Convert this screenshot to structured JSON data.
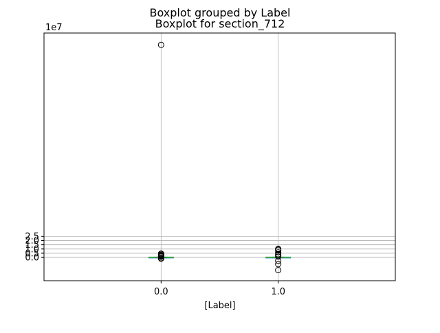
{
  "chart_data": {
    "type": "boxplot",
    "suptitle": "Boxplot grouped by Label",
    "title": "Boxplot for section_712",
    "xlabel": "[Label]",
    "ylabel": "",
    "y_scale_note": "1e7",
    "y_unit_multiplier": 10000000,
    "ylim": [
      -2.75,
      26.5
    ],
    "y_ticks": [
      0.0,
      0.5,
      1.0,
      1.5,
      2.0,
      2.5
    ],
    "y_tick_labels": [
      "0.0",
      "0.5",
      "1.0",
      "1.5",
      "2.0",
      "2.5"
    ],
    "grid": true,
    "categories": [
      "0.0",
      "1.0"
    ],
    "boxes": [
      {
        "category": "0.0",
        "median": 0.0,
        "q1": -0.02,
        "q3": 0.02,
        "whisker_low": -0.04,
        "whisker_high": 0.04,
        "outliers": [
          25.1,
          0.45,
          0.35,
          0.28,
          0.2,
          0.12,
          0.08,
          -0.08,
          -0.15
        ]
      },
      {
        "category": "1.0",
        "median": 0.0,
        "q1": -0.02,
        "q3": 0.02,
        "whisker_low": -0.04,
        "whisker_high": 0.04,
        "outliers": [
          1.0,
          0.95,
          0.85,
          0.6,
          0.4,
          0.25,
          0.1,
          -0.4,
          -0.8,
          -1.5
        ]
      }
    ],
    "colors": {
      "box": "#1f77b4",
      "median": "#2ca02c",
      "whisker": "#1f77b4",
      "outlier_edge": "#000000",
      "grid": "#b0b0b0",
      "axes": "#000000"
    }
  }
}
